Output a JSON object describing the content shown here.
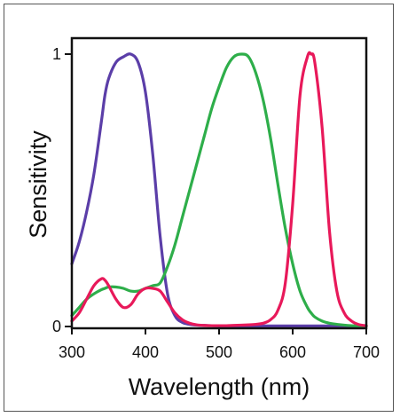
{
  "chart_data": {
    "type": "line",
    "xlabel": "Wavelength (nm)",
    "ylabel": "Sensitivity",
    "xlim": [
      300,
      700
    ],
    "ylim": [
      0,
      1
    ],
    "x_ticks": [
      "300",
      "400",
      "500",
      "600",
      "700"
    ],
    "y_ticks": [
      "0",
      "1"
    ],
    "grid": false,
    "x": [
      300,
      310,
      320,
      330,
      340,
      345,
      350,
      360,
      370,
      380,
      390,
      400,
      410,
      420,
      430,
      440,
      450,
      460,
      470,
      480,
      490,
      500,
      510,
      520,
      530,
      540,
      550,
      560,
      570,
      580,
      590,
      600,
      610,
      620,
      625,
      630,
      640,
      650,
      660,
      670,
      680,
      690,
      700
    ],
    "series": [
      {
        "color": "#5b3ea8",
        "values": [
          0.23,
          0.31,
          0.42,
          0.56,
          0.75,
          0.85,
          0.91,
          0.97,
          0.99,
          1.0,
          0.97,
          0.86,
          0.63,
          0.33,
          0.12,
          0.04,
          0.015,
          0.008,
          0.005,
          0.004,
          0.003,
          0.002,
          0.002,
          0.002,
          0.002,
          0.002,
          0.002,
          0.002,
          0.002,
          0.002,
          0.002,
          0.002,
          0.002,
          0.002,
          0.002,
          0.002,
          0.002,
          0.002,
          0.002,
          0.002,
          0.002,
          0.002,
          0.002
        ]
      },
      {
        "color": "#2eae4a",
        "values": [
          0.04,
          0.07,
          0.1,
          0.12,
          0.135,
          0.14,
          0.145,
          0.145,
          0.14,
          0.13,
          0.13,
          0.14,
          0.15,
          0.16,
          0.22,
          0.3,
          0.4,
          0.5,
          0.6,
          0.7,
          0.8,
          0.88,
          0.95,
          0.99,
          1.0,
          0.99,
          0.93,
          0.83,
          0.69,
          0.52,
          0.36,
          0.23,
          0.13,
          0.07,
          0.05,
          0.035,
          0.02,
          0.012,
          0.008,
          0.005,
          0.003,
          0.002,
          0.001
        ]
      },
      {
        "color": "#e8195a",
        "values": [
          0.02,
          0.05,
          0.1,
          0.15,
          0.175,
          0.17,
          0.15,
          0.1,
          0.07,
          0.08,
          0.12,
          0.14,
          0.14,
          0.13,
          0.09,
          0.05,
          0.025,
          0.012,
          0.006,
          0.004,
          0.003,
          0.003,
          0.003,
          0.004,
          0.005,
          0.006,
          0.008,
          0.012,
          0.025,
          0.06,
          0.16,
          0.45,
          0.85,
          0.99,
          1.0,
          0.97,
          0.73,
          0.35,
          0.13,
          0.05,
          0.02,
          0.007,
          0.003
        ]
      }
    ]
  }
}
